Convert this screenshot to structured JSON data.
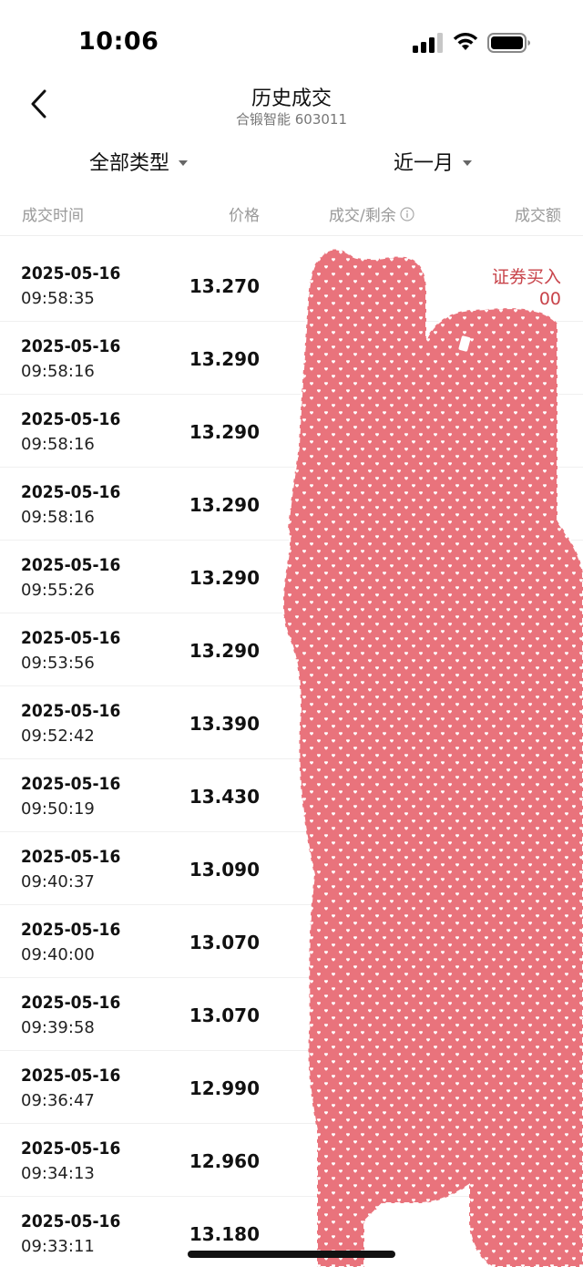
{
  "status_bar": {
    "time": "10:06"
  },
  "nav": {
    "title": "历史成交",
    "subtitle": "合锻智能 603011"
  },
  "filters": {
    "type_label": "全部类型",
    "range_label": "近一月"
  },
  "columns": {
    "time": "成交时间",
    "price": "价格",
    "volume": "成交/剩余",
    "amount": "成交额"
  },
  "rows": [
    {
      "date": "2025-05-16",
      "time": "09:58:35",
      "price": "13.270",
      "side": "证券买入",
      "amount": "00"
    },
    {
      "date": "2025-05-16",
      "time": "09:58:16",
      "price": "13.290"
    },
    {
      "date": "2025-05-16",
      "time": "09:58:16",
      "price": "13.290"
    },
    {
      "date": "2025-05-16",
      "time": "09:58:16",
      "price": "13.290"
    },
    {
      "date": "2025-05-16",
      "time": "09:55:26",
      "price": "13.290"
    },
    {
      "date": "2025-05-16",
      "time": "09:53:56",
      "price": "13.290"
    },
    {
      "date": "2025-05-16",
      "time": "09:52:42",
      "price": "13.390"
    },
    {
      "date": "2025-05-16",
      "time": "09:50:19",
      "price": "13.430"
    },
    {
      "date": "2025-05-16",
      "time": "09:40:37",
      "price": "13.090"
    },
    {
      "date": "2025-05-16",
      "time": "09:40:00",
      "price": "13.070"
    },
    {
      "date": "2025-05-16",
      "time": "09:39:58",
      "price": "13.070"
    },
    {
      "date": "2025-05-16",
      "time": "09:36:47",
      "price": "12.990"
    },
    {
      "date": "2025-05-16",
      "time": "09:34:13",
      "price": "12.960"
    },
    {
      "date": "2025-05-16",
      "time": "09:33:11",
      "price": "13.180"
    }
  ],
  "colors": {
    "buy_red": "#c8434a",
    "redaction_pink": "#e9737c"
  }
}
